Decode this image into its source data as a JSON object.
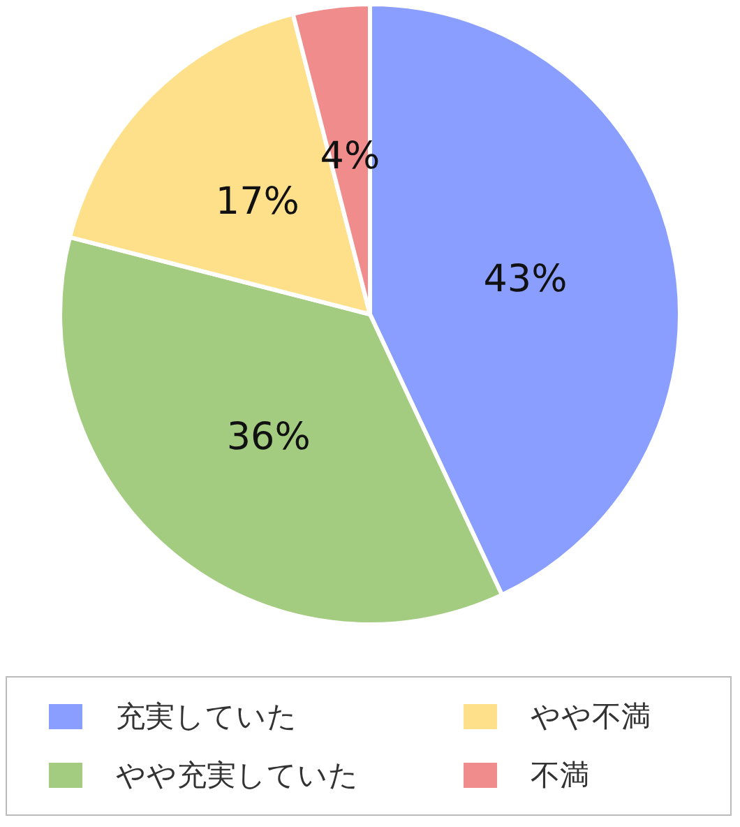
{
  "chart_data": {
    "type": "pie",
    "categories": [
      "充実していた",
      "やや充実していた",
      "やや不満",
      "不満"
    ],
    "values": [
      43,
      36,
      17,
      4
    ],
    "colors": [
      "#8a9eff",
      "#a3cc80",
      "#ffe08a",
      "#f08c8c"
    ],
    "value_labels": [
      "43%",
      "36%",
      "17%",
      "4%"
    ],
    "legend": "bottom"
  }
}
